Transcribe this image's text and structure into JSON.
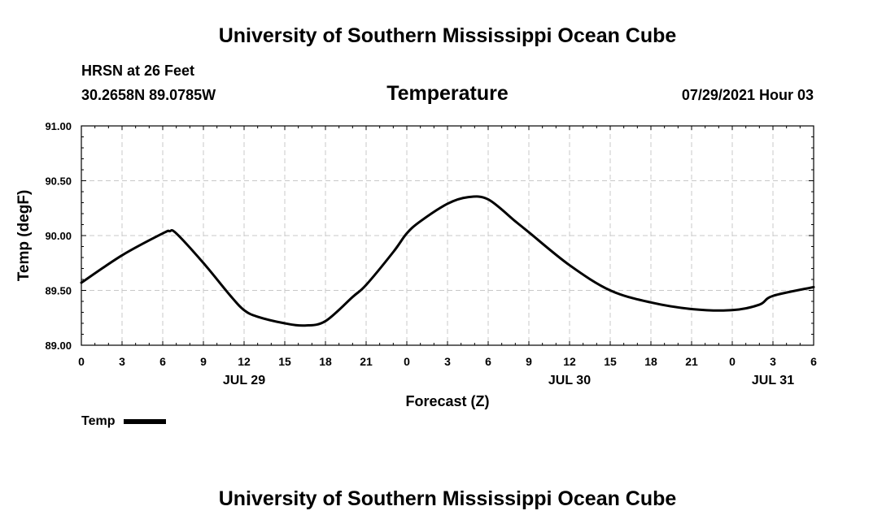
{
  "header": {
    "top_title": "University of Southern Mississippi Ocean Cube",
    "station": "HRSN at 26 Feet",
    "coords": "30.2658N  89.0785W",
    "chart_title": "Temperature",
    "timestamp": "07/29/2021 Hour 03",
    "bottom_title": "University of Southern Mississippi Ocean Cube"
  },
  "legend": {
    "label": "Temp"
  },
  "colors": {
    "line": "#000000",
    "grid": "#c8c8c8",
    "background": "#ffffff"
  },
  "chart_data": {
    "type": "line",
    "title": "Temperature",
    "xlabel": "Forecast (Z)",
    "ylabel": "Temp (degF)",
    "ylim": [
      89.0,
      91.0
    ],
    "xlim": [
      0,
      54
    ],
    "y_ticks": [
      "89.00",
      "89.50",
      "90.00",
      "90.50",
      "91.00"
    ],
    "y_tick_values": [
      89.0,
      89.5,
      90.0,
      90.5,
      91.0
    ],
    "x_tick_values": [
      0,
      3,
      6,
      9,
      12,
      15,
      18,
      21,
      24,
      27,
      30,
      33,
      36,
      39,
      42,
      45,
      48,
      51,
      54
    ],
    "x_tick_labels": [
      "0",
      "3",
      "6",
      "9",
      "12",
      "15",
      "18",
      "21",
      "0",
      "3",
      "6",
      "9",
      "12",
      "15",
      "18",
      "21",
      "0",
      "3",
      "6"
    ],
    "date_labels": [
      {
        "label": "JUL 29",
        "x": 12
      },
      {
        "label": "JUL 30",
        "x": 36
      },
      {
        "label": "JUL 31",
        "x": 51
      }
    ],
    "grid": true,
    "series": [
      {
        "name": "Temp",
        "x": [
          0,
          3,
          6,
          6.5,
          7,
          9,
          11,
          12,
          13,
          15,
          16.5,
          18,
          20,
          21,
          23,
          24,
          25,
          27,
          28.5,
          30,
          32,
          33,
          36,
          39,
          42,
          45,
          48,
          50,
          51,
          54
        ],
        "y": [
          89.57,
          89.82,
          90.02,
          90.04,
          90.02,
          89.75,
          89.45,
          89.32,
          89.26,
          89.2,
          89.18,
          89.22,
          89.44,
          89.55,
          89.85,
          90.02,
          90.13,
          90.29,
          90.35,
          90.33,
          90.13,
          90.03,
          89.73,
          89.5,
          89.39,
          89.33,
          89.32,
          89.37,
          89.45,
          89.53
        ]
      }
    ]
  }
}
